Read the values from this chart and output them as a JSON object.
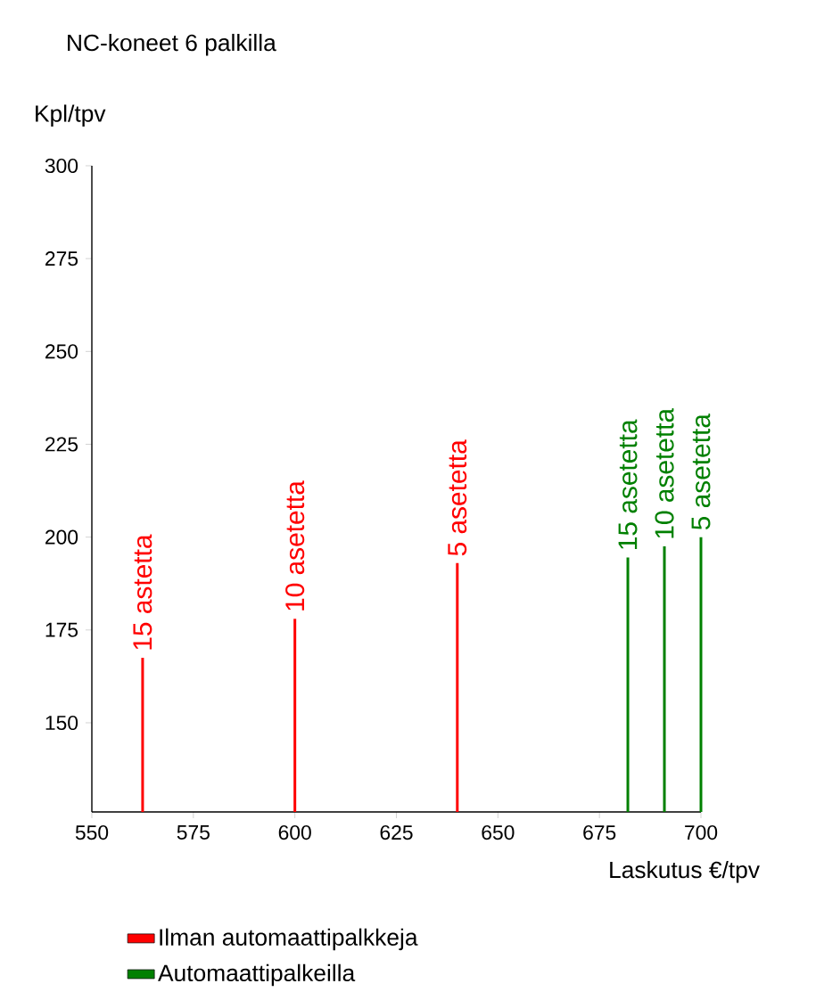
{
  "chart_data": {
    "type": "bar",
    "title": "NC-koneet 6 palkilla",
    "xlabel": "Laskutus €/tpv",
    "ylabel": "Kpl/tpv",
    "series": [
      {
        "name": "Ilman automaattipalkkeja",
        "color": "#ff0000",
        "x": [
          562.5,
          600,
          640
        ],
        "values": [
          167.5,
          178,
          193
        ]
      },
      {
        "name": "Automaattipalkeilla",
        "color": "#008000",
        "x": [
          682,
          691,
          700
        ],
        "values": [
          194.5,
          197.5,
          200
        ]
      }
    ],
    "annotations": [
      {
        "text": "15 astetta",
        "x": 562.5,
        "y": 167.5
      },
      {
        "text": "10 asetetta",
        "x": 600,
        "y": 178
      },
      {
        "text": "5 asetetta",
        "x": 640,
        "y": 193
      },
      {
        "text": "15 asetetta",
        "x": 682,
        "y": 194.5
      },
      {
        "text": "10 asetetta",
        "x": 691,
        "y": 197.5
      },
      {
        "text": "5 asetetta",
        "x": 700,
        "y": 200
      }
    ],
    "xlim": [
      550,
      700
    ],
    "ylim": [
      126,
      300
    ],
    "xticks": [
      550,
      575,
      600,
      625,
      650,
      675,
      700
    ],
    "yticks": [
      150,
      175,
      200,
      225,
      250,
      275,
      300
    ],
    "legend": "bottom"
  }
}
